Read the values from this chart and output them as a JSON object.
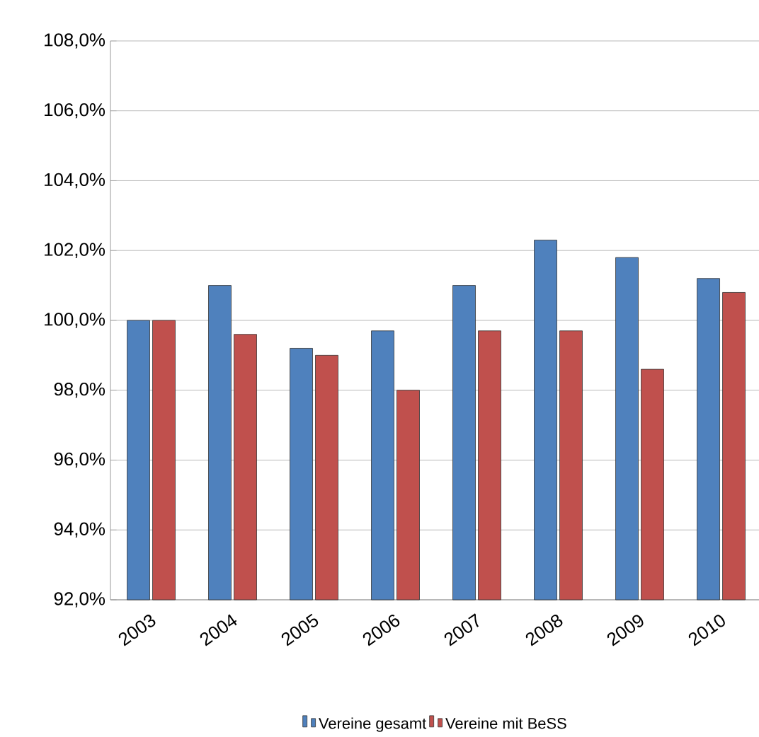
{
  "chart_data": {
    "type": "bar",
    "categories": [
      "2003",
      "2004",
      "2005",
      "2006",
      "2007",
      "2008",
      "2009",
      "2010"
    ],
    "series": [
      {
        "name": "Vereine gesamt",
        "color": "#4f81bd",
        "values": [
          100.0,
          101.0,
          99.2,
          99.7,
          101.0,
          102.3,
          101.8,
          101.2
        ]
      },
      {
        "name": "Vereine mit BeSS",
        "color": "#c0504d",
        "values": [
          100.0,
          99.6,
          99.0,
          98.0,
          99.7,
          99.7,
          98.6,
          100.8
        ]
      }
    ],
    "ylim": [
      92,
      108
    ],
    "yticks": [
      {
        "value": 92,
        "label": "92,0%"
      },
      {
        "value": 94,
        "label": "94,0%"
      },
      {
        "value": 96,
        "label": "96,0%"
      },
      {
        "value": 98,
        "label": "98,0%"
      },
      {
        "value": 100,
        "label": "100,0%"
      },
      {
        "value": 102,
        "label": "102,0%"
      },
      {
        "value": 104,
        "label": "104,0%"
      },
      {
        "value": 106,
        "label": "106,0%"
      },
      {
        "value": 108,
        "label": "108,0%"
      }
    ],
    "grid": "y",
    "legend": "bottom"
  }
}
